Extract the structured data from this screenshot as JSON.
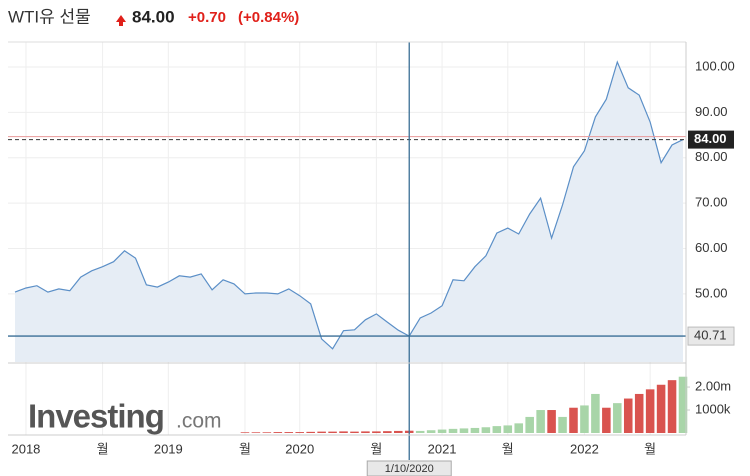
{
  "header": {
    "title": "WTI유 선물",
    "price": "84.00",
    "change": "+0.70",
    "change_pct": "(+0.84%)"
  },
  "watermark": {
    "brand": "Investing",
    "suffix": ".com"
  },
  "chart_data": {
    "type": "area",
    "categories": [
      null,
      "2018",
      null,
      null,
      null,
      null,
      null,
      null,
      "월",
      null,
      null,
      null,
      null,
      null,
      "2019",
      null,
      null,
      null,
      null,
      null,
      null,
      "월",
      null,
      null,
      null,
      null,
      "2020",
      null,
      null,
      null,
      null,
      null,
      null,
      "월",
      null,
      null,
      null,
      null,
      null,
      "2021",
      null,
      null,
      null,
      null,
      null,
      "월",
      null,
      null,
      null,
      null,
      null,
      null,
      "2022",
      null,
      null,
      null,
      null,
      null,
      "월",
      null,
      null,
      null
    ],
    "series": [
      {
        "name": "WTI",
        "color": "#5b8fc7",
        "fill": "#e6edf5",
        "values": [
          50.4,
          51.3,
          51.8,
          50.4,
          51.1,
          50.7,
          53.7,
          55.1,
          56,
          57.1,
          59.5,
          57.9,
          52,
          51.5,
          52.6,
          54,
          53.7,
          54.4,
          50.9,
          53.1,
          52.2,
          50,
          50.2,
          50.2,
          50,
          51.1,
          49.6,
          47.8,
          40.1,
          37.9,
          41.9,
          42.1,
          44.3,
          45.6,
          43.8,
          42,
          40.71,
          44.7,
          45.8,
          47.4,
          53.1,
          52.9,
          56,
          58.4,
          63.4,
          64.5,
          63.2,
          67.6,
          71.1,
          62.3,
          69.6,
          78,
          81.5,
          89,
          92.9,
          101.1,
          95.4,
          93.8,
          87.9,
          78.9,
          82.8,
          84
        ]
      },
      {
        "type": "bar",
        "axis": "y2",
        "values": [
          null,
          null,
          null,
          null,
          null,
          null,
          null,
          null,
          null,
          null,
          null,
          null,
          null,
          null,
          null,
          null,
          null,
          null,
          null,
          null,
          null,
          30,
          30,
          30,
          40,
          40,
          40,
          50,
          60,
          60,
          70,
          60,
          70,
          70,
          80,
          90,
          100,
          90,
          120,
          150,
          180,
          200,
          220,
          250,
          300,
          330,
          420,
          700,
          1000,
          1000,
          700,
          1100,
          1200,
          1700,
          1100,
          1300,
          1500,
          1700,
          1900,
          2100,
          2300,
          2450
        ],
        "colors": [
          null,
          null,
          null,
          null,
          null,
          null,
          null,
          null,
          null,
          null,
          null,
          null,
          null,
          null,
          null,
          null,
          null,
          null,
          null,
          null,
          null,
          "#d9534f",
          "#d9534f",
          "#d9534f",
          "#d9534f",
          "#d9534f",
          "#d9534f",
          "#d9534f",
          "#d9534f",
          "#d9534f",
          "#d9534f",
          "#d9534f",
          "#d9534f",
          "#d9534f",
          "#d9534f",
          "#d9534f",
          "#d9534f",
          "#a8d5a8",
          "#a8d5a8",
          "#a8d5a8",
          "#a8d5a8",
          "#a8d5a8",
          "#a8d5a8",
          "#a8d5a8",
          "#a8d5a8",
          "#a8d5a8",
          "#a8d5a8",
          "#a8d5a8",
          "#a8d5a8",
          "#d9534f",
          "#a8d5a8",
          "#d9534f",
          "#a8d5a8",
          "#a8d5a8",
          "#d9534f",
          "#a8d5a8",
          "#d9534f",
          "#d9534f",
          "#d9534f",
          "#d9534f",
          "#d9534f",
          "#a8d5a8"
        ]
      }
    ],
    "ylim": [
      35,
      105.5
    ],
    "yticks": [
      {
        "value": 50,
        "label": "50.00"
      },
      {
        "value": 60,
        "label": "60.00"
      },
      {
        "value": 70,
        "label": "70.00"
      },
      {
        "value": 80,
        "label": "80.00"
      },
      {
        "value": 90,
        "label": "90.00"
      },
      {
        "value": 100,
        "label": "100.00"
      }
    ],
    "y2lim": [
      0,
      2960
    ],
    "y2ticks": [
      {
        "value": 1000,
        "label": "1000k"
      },
      {
        "value": 2000,
        "label": "2.00m"
      }
    ],
    "crosshair": {
      "date": "1/10/2020",
      "value": 40.71
    },
    "grid": true
  }
}
